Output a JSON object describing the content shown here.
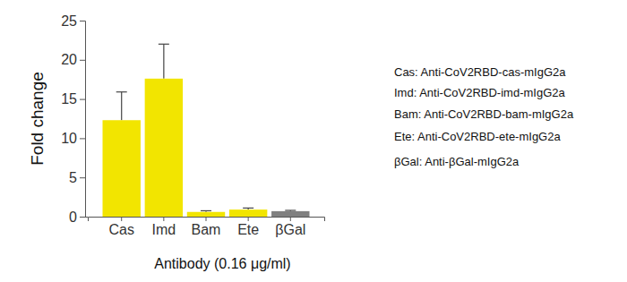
{
  "chart_data": {
    "type": "bar",
    "y_label": "Fold change",
    "x_label": "Antibody (0.16 μg/ml)",
    "categories": [
      "Cas",
      "Imd",
      "Bam",
      "Ete",
      "βGal"
    ],
    "values": [
      12.3,
      17.6,
      0.6,
      0.9,
      0.7
    ],
    "errors": [
      3.6,
      4.4,
      0.15,
      0.2,
      0.1
    ],
    "colors": [
      "#f2e500",
      "#f2e500",
      "#f2e500",
      "#f2e500",
      "#808080"
    ],
    "ylim": [
      0,
      25
    ],
    "yticks": [
      0,
      5,
      10,
      15,
      20,
      25
    ],
    "grid": false,
    "annotations": [
      "Cas: Anti-CoV2RBD-cas-mIgG2a",
      "Imd: Anti-CoV2RBD-imd-mIgG2a",
      "Bam: Anti-CoV2RBD-bam-mIgG2a",
      "Ete: Anti-CoV2RBD-ete-mIgG2a",
      "βGal: Anti-βGal-mIgG2a"
    ]
  }
}
